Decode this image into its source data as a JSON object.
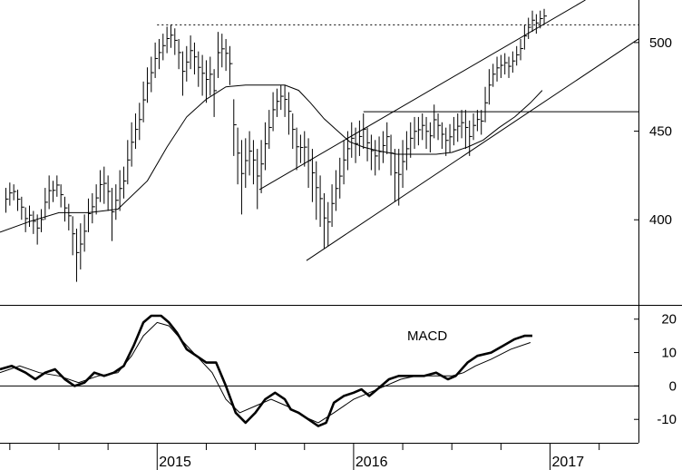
{
  "chart_data": [
    {
      "type": "ohlc",
      "panel": "price",
      "y_axis_ticks": [
        "500",
        "450",
        "400"
      ],
      "ylim": [
        352,
        524
      ],
      "x_ticks": [
        "2015",
        "2016",
        "2017"
      ],
      "xlim": [
        2014.2,
        2017.45
      ],
      "grid": false,
      "axis_side": "right",
      "bars": [
        [
          2014.23,
          404,
          418
        ],
        [
          2014.25,
          408,
          421
        ],
        [
          2014.27,
          411,
          420
        ],
        [
          2014.29,
          405,
          417
        ],
        [
          2014.31,
          400,
          413
        ],
        [
          2014.33,
          393,
          407
        ],
        [
          2014.35,
          396,
          408
        ],
        [
          2014.37,
          392,
          405
        ],
        [
          2014.39,
          386,
          403
        ],
        [
          2014.41,
          393,
          406
        ],
        [
          2014.43,
          400,
          418
        ],
        [
          2014.45,
          406,
          425
        ],
        [
          2014.47,
          410,
          422
        ],
        [
          2014.49,
          413,
          425
        ],
        [
          2014.51,
          407,
          420
        ],
        [
          2014.53,
          399,
          413
        ],
        [
          2014.55,
          394,
          409
        ],
        [
          2014.57,
          380,
          402
        ],
        [
          2014.59,
          365,
          395
        ],
        [
          2014.61,
          372,
          398
        ],
        [
          2014.63,
          382,
          403
        ],
        [
          2014.65,
          393,
          412
        ],
        [
          2014.67,
          398,
          415
        ],
        [
          2014.69,
          403,
          420
        ],
        [
          2014.71,
          410,
          428
        ],
        [
          2014.73,
          409,
          430
        ],
        [
          2014.75,
          405,
          425
        ],
        [
          2014.77,
          388,
          418
        ],
        [
          2014.79,
          400,
          420
        ],
        [
          2014.81,
          405,
          428
        ],
        [
          2014.83,
          412,
          430
        ],
        [
          2014.85,
          420,
          445
        ],
        [
          2014.87,
          430,
          455
        ],
        [
          2014.89,
          440,
          460
        ],
        [
          2014.91,
          445,
          466
        ],
        [
          2014.93,
          455,
          478
        ],
        [
          2014.95,
          466,
          486
        ],
        [
          2014.97,
          472,
          492
        ],
        [
          2014.99,
          480,
          500
        ],
        [
          2015.01,
          485,
          502
        ],
        [
          2015.03,
          490,
          505
        ],
        [
          2015.05,
          494,
          509
        ],
        [
          2015.07,
          497,
          510
        ],
        [
          2015.09,
          493,
          508
        ],
        [
          2015.11,
          485,
          502
        ],
        [
          2015.13,
          470,
          495
        ],
        [
          2015.15,
          478,
          498
        ],
        [
          2015.17,
          485,
          504
        ],
        [
          2015.19,
          482,
          500
        ],
        [
          2015.21,
          475,
          495
        ],
        [
          2015.23,
          470,
          493
        ],
        [
          2015.25,
          466,
          490
        ],
        [
          2015.27,
          470,
          492
        ],
        [
          2015.29,
          458,
          485
        ],
        [
          2015.31,
          480,
          506
        ],
        [
          2015.33,
          486,
          505
        ],
        [
          2015.35,
          484,
          502
        ],
        [
          2015.37,
          476,
          498
        ],
        [
          2015.39,
          436,
          468
        ],
        [
          2015.41,
          420,
          452
        ],
        [
          2015.43,
          403,
          445
        ],
        [
          2015.45,
          418,
          446
        ],
        [
          2015.47,
          425,
          450
        ],
        [
          2015.49,
          420,
          445
        ],
        [
          2015.51,
          406,
          440
        ],
        [
          2015.53,
          415,
          445
        ],
        [
          2015.55,
          428,
          455
        ],
        [
          2015.57,
          440,
          462
        ],
        [
          2015.59,
          450,
          472
        ],
        [
          2015.61,
          458,
          474
        ],
        [
          2015.63,
          462,
          476
        ],
        [
          2015.65,
          458,
          476
        ],
        [
          2015.67,
          448,
          472
        ],
        [
          2015.69,
          440,
          460
        ],
        [
          2015.71,
          428,
          452
        ],
        [
          2015.73,
          432,
          448
        ],
        [
          2015.75,
          430,
          450
        ],
        [
          2015.77,
          418,
          446
        ],
        [
          2015.79,
          410,
          440
        ],
        [
          2015.81,
          400,
          433
        ],
        [
          2015.83,
          396,
          425
        ],
        [
          2015.85,
          384,
          415
        ],
        [
          2015.87,
          385,
          410
        ],
        [
          2015.89,
          396,
          420
        ],
        [
          2015.91,
          405,
          428
        ],
        [
          2015.93,
          412,
          435
        ],
        [
          2015.95,
          420,
          445
        ],
        [
          2015.97,
          428,
          450
        ],
        [
          2015.99,
          435,
          455
        ],
        [
          2016.01,
          432,
          452
        ],
        [
          2016.03,
          436,
          456
        ],
        [
          2016.05,
          440,
          460
        ],
        [
          2016.07,
          433,
          452
        ],
        [
          2016.09,
          428,
          448
        ],
        [
          2016.11,
          425,
          445
        ],
        [
          2016.13,
          428,
          447
        ],
        [
          2016.15,
          432,
          450
        ],
        [
          2016.17,
          437,
          455
        ],
        [
          2016.19,
          425,
          448
        ],
        [
          2016.21,
          410,
          440
        ],
        [
          2016.23,
          408,
          440
        ],
        [
          2016.25,
          418,
          445
        ],
        [
          2016.27,
          428,
          450
        ],
        [
          2016.29,
          435,
          455
        ],
        [
          2016.31,
          440,
          458
        ],
        [
          2016.33,
          442,
          458
        ],
        [
          2016.35,
          445,
          460
        ],
        [
          2016.37,
          440,
          458
        ],
        [
          2016.39,
          438,
          455
        ],
        [
          2016.41,
          446,
          465
        ],
        [
          2016.43,
          445,
          460
        ],
        [
          2016.45,
          440,
          455
        ],
        [
          2016.47,
          436,
          452
        ],
        [
          2016.49,
          438,
          454
        ],
        [
          2016.51,
          442,
          458
        ],
        [
          2016.53,
          444,
          460
        ],
        [
          2016.55,
          446,
          462
        ],
        [
          2016.57,
          440,
          462
        ],
        [
          2016.59,
          436,
          456
        ],
        [
          2016.61,
          445,
          460
        ],
        [
          2016.63,
          450,
          462
        ],
        [
          2016.65,
          448,
          462
        ],
        [
          2016.67,
          455,
          475
        ],
        [
          2016.69,
          465,
          485
        ],
        [
          2016.71,
          475,
          488
        ],
        [
          2016.73,
          478,
          492
        ],
        [
          2016.75,
          480,
          493
        ],
        [
          2016.77,
          482,
          494
        ],
        [
          2016.79,
          480,
          492
        ],
        [
          2016.81,
          483,
          495
        ],
        [
          2016.83,
          487,
          498
        ],
        [
          2016.85,
          490,
          502
        ],
        [
          2016.87,
          496,
          510
        ],
        [
          2016.89,
          502,
          514
        ],
        [
          2016.91,
          506,
          518
        ],
        [
          2016.93,
          505,
          516
        ],
        [
          2016.95,
          508,
          518
        ],
        [
          2016.97,
          510,
          519
        ]
      ],
      "moving_average": [
        [
          2014.2,
          393
        ],
        [
          2014.35,
          399
        ],
        [
          2014.5,
          404
        ],
        [
          2014.65,
          404
        ],
        [
          2014.8,
          406
        ],
        [
          2014.95,
          422
        ],
        [
          2015.05,
          441
        ],
        [
          2015.15,
          458
        ],
        [
          2015.25,
          468
        ],
        [
          2015.35,
          475
        ],
        [
          2015.45,
          476
        ],
        [
          2015.55,
          476
        ],
        [
          2015.65,
          476
        ],
        [
          2015.72,
          473
        ],
        [
          2015.78,
          466
        ],
        [
          2015.85,
          457
        ],
        [
          2015.92,
          450
        ],
        [
          2015.98,
          444
        ],
        [
          2016.05,
          441
        ],
        [
          2016.12,
          439
        ],
        [
          2016.22,
          437
        ],
        [
          2016.32,
          437
        ],
        [
          2016.42,
          437
        ],
        [
          2016.5,
          438
        ],
        [
          2016.58,
          441
        ],
        [
          2016.66,
          445
        ],
        [
          2016.74,
          452
        ],
        [
          2016.82,
          458
        ],
        [
          2016.9,
          466
        ],
        [
          2016.96,
          473
        ]
      ],
      "horizontal_lines": [
        {
          "y": 510,
          "x0": 2015.0,
          "x1": 2017.45,
          "style": "dotted"
        },
        {
          "y": 461,
          "x0": 2016.05,
          "x1": 2017.45,
          "style": "solid"
        }
      ],
      "trend_lines": [
        {
          "x0": 2015.52,
          "y0": 417,
          "x1": 2017.18,
          "y1": 524
        },
        {
          "x0": 2015.76,
          "y0": 377,
          "x1": 2017.45,
          "y1": 502
        }
      ]
    },
    {
      "type": "line",
      "panel": "indicator",
      "label": "MACD",
      "y_axis_ticks": [
        "20",
        "10",
        "0",
        "-10"
      ],
      "ylim": [
        -17,
        24
      ],
      "zero_line": true,
      "axis_side": "right",
      "series": [
        {
          "role": "macd",
          "points": [
            [
              2014.2,
              5
            ],
            [
              2014.26,
              6
            ],
            [
              2014.33,
              4
            ],
            [
              2014.38,
              2
            ],
            [
              2014.43,
              4
            ],
            [
              2014.48,
              5
            ],
            [
              2014.53,
              2
            ],
            [
              2014.58,
              0
            ],
            [
              2014.63,
              1
            ],
            [
              2014.68,
              4
            ],
            [
              2014.73,
              3
            ],
            [
              2014.78,
              4
            ],
            [
              2014.83,
              6
            ],
            [
              2014.88,
              12
            ],
            [
              2014.93,
              19
            ],
            [
              2014.97,
              21
            ],
            [
              2015.02,
              21
            ],
            [
              2015.06,
              19
            ],
            [
              2015.1,
              16
            ],
            [
              2015.15,
              11
            ],
            [
              2015.2,
              9
            ],
            [
              2015.25,
              7
            ],
            [
              2015.3,
              7
            ],
            [
              2015.35,
              0
            ],
            [
              2015.4,
              -8
            ],
            [
              2015.45,
              -11
            ],
            [
              2015.5,
              -8
            ],
            [
              2015.55,
              -4
            ],
            [
              2015.6,
              -2
            ],
            [
              2015.65,
              -4
            ],
            [
              2015.68,
              -7
            ],
            [
              2015.72,
              -8
            ],
            [
              2015.77,
              -10
            ],
            [
              2015.82,
              -12
            ],
            [
              2015.86,
              -11
            ],
            [
              2015.9,
              -5
            ],
            [
              2015.95,
              -3
            ],
            [
              2016.0,
              -2
            ],
            [
              2016.04,
              -1
            ],
            [
              2016.08,
              -3
            ],
            [
              2016.12,
              -1
            ],
            [
              2016.18,
              2
            ],
            [
              2016.23,
              3
            ],
            [
              2016.3,
              3
            ],
            [
              2016.36,
              3
            ],
            [
              2016.42,
              4
            ],
            [
              2016.48,
              2
            ],
            [
              2016.52,
              3
            ],
            [
              2016.58,
              7
            ],
            [
              2016.63,
              9
            ],
            [
              2016.7,
              10
            ],
            [
              2016.76,
              12
            ],
            [
              2016.82,
              14
            ],
            [
              2016.87,
              15
            ],
            [
              2016.91,
              15
            ]
          ]
        },
        {
          "role": "signal",
          "points": [
            [
              2014.2,
              4
            ],
            [
              2014.3,
              6
            ],
            [
              2014.4,
              4
            ],
            [
              2014.5,
              3
            ],
            [
              2014.6,
              1
            ],
            [
              2014.7,
              3
            ],
            [
              2014.8,
              4
            ],
            [
              2014.87,
              9
            ],
            [
              2014.93,
              15
            ],
            [
              2015.0,
              19
            ],
            [
              2015.06,
              18
            ],
            [
              2015.12,
              14
            ],
            [
              2015.2,
              9
            ],
            [
              2015.28,
              4
            ],
            [
              2015.35,
              -4
            ],
            [
              2015.42,
              -8
            ],
            [
              2015.5,
              -6
            ],
            [
              2015.58,
              -4
            ],
            [
              2015.66,
              -6
            ],
            [
              2015.74,
              -9
            ],
            [
              2015.82,
              -11
            ],
            [
              2015.9,
              -8
            ],
            [
              2016.0,
              -4
            ],
            [
              2016.08,
              -2
            ],
            [
              2016.16,
              0
            ],
            [
              2016.24,
              2
            ],
            [
              2016.32,
              3
            ],
            [
              2016.42,
              3
            ],
            [
              2016.5,
              3
            ],
            [
              2016.56,
              4
            ],
            [
              2016.62,
              6
            ],
            [
              2016.7,
              8
            ],
            [
              2016.8,
              11
            ],
            [
              2016.9,
              13
            ]
          ]
        }
      ]
    }
  ],
  "colors": {
    "line": "#000000",
    "background": "#ffffff"
  }
}
